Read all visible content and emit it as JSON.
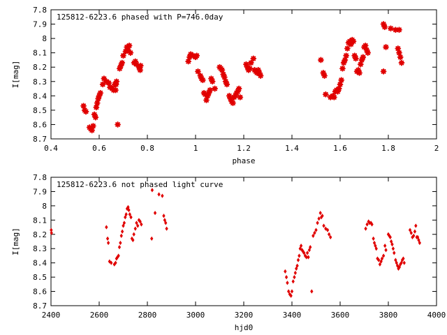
{
  "chart_data": [
    {
      "type": "scatter",
      "title": "125812-6223.6 phased with P=746.0day",
      "xlabel": "phase",
      "ylabel": "I[mag]",
      "xlim": [
        0.4,
        2.0
      ],
      "ylim": [
        8.7,
        7.8
      ],
      "y_inverted": true,
      "grid": false,
      "color": "#e00000",
      "marker": "star",
      "x_ticks": [
        0.4,
        0.6,
        0.8,
        1.0,
        1.2,
        1.4,
        1.6,
        1.8,
        2.0
      ],
      "x_tick_labels": [
        "0.4",
        "0.6",
        "0.8",
        "1",
        "1.2",
        "1.4",
        "1.6",
        "1.8",
        "2"
      ],
      "y_ticks": [
        7.8,
        7.9,
        8.0,
        8.1,
        8.2,
        8.3,
        8.4,
        8.5,
        8.6,
        8.7
      ],
      "y_tick_labels": [
        "7.8",
        "7.9",
        "8",
        "8.1",
        "8.2",
        "8.3",
        "8.4",
        "8.5",
        "8.6",
        "8.7"
      ],
      "points": [
        [
          0.535,
          8.47
        ],
        [
          0.54,
          8.5
        ],
        [
          0.545,
          8.51
        ],
        [
          0.56,
          8.62
        ],
        [
          0.565,
          8.63
        ],
        [
          0.57,
          8.64
        ],
        [
          0.575,
          8.61
        ],
        [
          0.58,
          8.53
        ],
        [
          0.585,
          8.55
        ],
        [
          0.588,
          8.48
        ],
        [
          0.592,
          8.45
        ],
        [
          0.596,
          8.42
        ],
        [
          0.6,
          8.4
        ],
        [
          0.605,
          8.38
        ],
        [
          0.615,
          8.32
        ],
        [
          0.62,
          8.28
        ],
        [
          0.63,
          8.3
        ],
        [
          0.64,
          8.31
        ],
        [
          0.645,
          8.34
        ],
        [
          0.655,
          8.35
        ],
        [
          0.66,
          8.36
        ],
        [
          0.665,
          8.32
        ],
        [
          0.668,
          8.36
        ],
        [
          0.67,
          8.32
        ],
        [
          0.672,
          8.3
        ],
        [
          0.677,
          8.6
        ],
        [
          0.685,
          8.21
        ],
        [
          0.69,
          8.19
        ],
        [
          0.695,
          8.17
        ],
        [
          0.7,
          8.12
        ],
        [
          0.71,
          8.09
        ],
        [
          0.715,
          8.06
        ],
        [
          0.72,
          8.08
        ],
        [
          0.725,
          8.05
        ],
        [
          0.73,
          8.1
        ],
        [
          0.745,
          8.17
        ],
        [
          0.75,
          8.16
        ],
        [
          0.755,
          8.18
        ],
        [
          0.765,
          8.2
        ],
        [
          0.77,
          8.22
        ],
        [
          0.772,
          8.19
        ],
        [
          0.97,
          8.16
        ],
        [
          0.975,
          8.13
        ],
        [
          0.98,
          8.11
        ],
        [
          0.99,
          8.12
        ],
        [
          1.0,
          8.13
        ],
        [
          1.005,
          8.12
        ],
        [
          1.01,
          8.23
        ],
        [
          1.02,
          8.26
        ],
        [
          1.025,
          8.28
        ],
        [
          1.03,
          8.29
        ],
        [
          1.035,
          8.38
        ],
        [
          1.04,
          8.39
        ],
        [
          1.045,
          8.43
        ],
        [
          1.05,
          8.4
        ],
        [
          1.055,
          8.38
        ],
        [
          1.06,
          8.36
        ],
        [
          1.065,
          8.28
        ],
        [
          1.07,
          8.3
        ],
        [
          1.08,
          8.35
        ],
        [
          1.1,
          8.2
        ],
        [
          1.105,
          8.21
        ],
        [
          1.11,
          8.22
        ],
        [
          1.115,
          8.25
        ],
        [
          1.12,
          8.27
        ],
        [
          1.125,
          8.3
        ],
        [
          1.13,
          8.32
        ],
        [
          1.14,
          8.4
        ],
        [
          1.145,
          8.42
        ],
        [
          1.15,
          8.44
        ],
        [
          1.155,
          8.45
        ],
        [
          1.16,
          8.41
        ],
        [
          1.165,
          8.4
        ],
        [
          1.17,
          8.38
        ],
        [
          1.175,
          8.37
        ],
        [
          1.18,
          8.35
        ],
        [
          1.185,
          8.41
        ],
        [
          1.21,
          8.18
        ],
        [
          1.215,
          8.2
        ],
        [
          1.22,
          8.22
        ],
        [
          1.225,
          8.21
        ],
        [
          1.23,
          8.17
        ],
        [
          1.24,
          8.14
        ],
        [
          1.245,
          8.22
        ],
        [
          1.25,
          8.23
        ],
        [
          1.255,
          8.24
        ],
        [
          1.26,
          8.22
        ],
        [
          1.265,
          8.24
        ],
        [
          1.27,
          8.26
        ],
        [
          1.52,
          8.15
        ],
        [
          1.53,
          8.24
        ],
        [
          1.535,
          8.26
        ],
        [
          1.54,
          8.39
        ],
        [
          1.56,
          8.41
        ],
        [
          1.57,
          8.4
        ],
        [
          1.575,
          8.41
        ],
        [
          1.58,
          8.37
        ],
        [
          1.585,
          8.36
        ],
        [
          1.59,
          8.37
        ],
        [
          1.595,
          8.35
        ],
        [
          1.6,
          8.32
        ],
        [
          1.605,
          8.29
        ],
        [
          1.61,
          8.21
        ],
        [
          1.615,
          8.17
        ],
        [
          1.62,
          8.15
        ],
        [
          1.625,
          8.12
        ],
        [
          1.63,
          8.07
        ],
        [
          1.635,
          8.03
        ],
        [
          1.64,
          8.02
        ],
        [
          1.645,
          8.04
        ],
        [
          1.65,
          8.01
        ],
        [
          1.655,
          8.02
        ],
        [
          1.66,
          8.12
        ],
        [
          1.665,
          8.14
        ],
        [
          1.67,
          8.23
        ],
        [
          1.675,
          8.22
        ],
        [
          1.68,
          8.24
        ],
        [
          1.685,
          8.18
        ],
        [
          1.69,
          8.15
        ],
        [
          1.695,
          8.13
        ],
        [
          1.7,
          8.06
        ],
        [
          1.705,
          8.05
        ],
        [
          1.71,
          8.08
        ],
        [
          1.715,
          8.1
        ],
        [
          1.78,
          7.9
        ],
        [
          1.785,
          7.92
        ],
        [
          1.79,
          8.06
        ],
        [
          1.78,
          8.23
        ],
        [
          1.81,
          7.93
        ],
        [
          1.83,
          7.94
        ],
        [
          1.845,
          7.94
        ],
        [
          1.84,
          8.07
        ],
        [
          1.845,
          8.1
        ],
        [
          1.85,
          8.13
        ],
        [
          1.855,
          8.17
        ]
      ]
    },
    {
      "type": "scatter",
      "title": "125812-6223.6 not phased light curve",
      "xlabel": "hjd0",
      "ylabel": "I[mag]",
      "xlim": [
        2400,
        4000
      ],
      "ylim": [
        8.7,
        7.8
      ],
      "y_inverted": true,
      "grid": false,
      "color": "#e00000",
      "marker": "diamond",
      "x_ticks": [
        2400,
        2600,
        2800,
        3000,
        3200,
        3400,
        3600,
        3800,
        4000
      ],
      "x_tick_labels": [
        "2400",
        "2600",
        "2800",
        "3000",
        "3200",
        "3400",
        "3600",
        "3800",
        "4000"
      ],
      "y_ticks": [
        7.8,
        7.9,
        8.0,
        8.1,
        8.2,
        8.3,
        8.4,
        8.5,
        8.6,
        8.7
      ],
      "y_tick_labels": [
        "7.8",
        "7.9",
        "8",
        "8.1",
        "8.2",
        "8.3",
        "8.4",
        "8.5",
        "8.6",
        "8.7"
      ],
      "points": [
        [
          2401,
          8.17
        ],
        [
          2402,
          8.19
        ],
        [
          2630,
          8.15
        ],
        [
          2635,
          8.23
        ],
        [
          2638,
          8.26
        ],
        [
          2643,
          8.39
        ],
        [
          2650,
          8.4
        ],
        [
          2663,
          8.41
        ],
        [
          2668,
          8.4
        ],
        [
          2672,
          8.37
        ],
        [
          2676,
          8.36
        ],
        [
          2680,
          8.35
        ],
        [
          2684,
          8.29
        ],
        [
          2688,
          8.26
        ],
        [
          2692,
          8.21
        ],
        [
          2696,
          8.18
        ],
        [
          2700,
          8.14
        ],
        [
          2704,
          8.12
        ],
        [
          2708,
          8.08
        ],
        [
          2712,
          8.06
        ],
        [
          2716,
          8.02
        ],
        [
          2720,
          8.01
        ],
        [
          2723,
          8.03
        ],
        [
          2727,
          8.06
        ],
        [
          2732,
          8.08
        ],
        [
          2736,
          8.23
        ],
        [
          2740,
          8.24
        ],
        [
          2744,
          8.2
        ],
        [
          2750,
          8.16
        ],
        [
          2755,
          8.12
        ],
        [
          2760,
          8.14
        ],
        [
          2765,
          8.1
        ],
        [
          2770,
          8.11
        ],
        [
          2775,
          8.13
        ],
        [
          2818,
          8.23
        ],
        [
          2820,
          7.89
        ],
        [
          2832,
          8.05
        ],
        [
          2848,
          7.92
        ],
        [
          2862,
          7.93
        ],
        [
          2868,
          8.07
        ],
        [
          2872,
          8.1
        ],
        [
          2876,
          8.12
        ],
        [
          2880,
          8.16
        ],
        [
          3372,
          8.46
        ],
        [
          3377,
          8.5
        ],
        [
          3381,
          8.54
        ],
        [
          3386,
          8.6
        ],
        [
          3391,
          8.62
        ],
        [
          3396,
          8.63
        ],
        [
          3400,
          8.6
        ],
        [
          3405,
          8.53
        ],
        [
          3410,
          8.5
        ],
        [
          3414,
          8.47
        ],
        [
          3418,
          8.44
        ],
        [
          3422,
          8.42
        ],
        [
          3426,
          8.38
        ],
        [
          3430,
          8.35
        ],
        [
          3434,
          8.3
        ],
        [
          3438,
          8.28
        ],
        [
          3442,
          8.31
        ],
        [
          3446,
          8.32
        ],
        [
          3450,
          8.33
        ],
        [
          3455,
          8.35
        ],
        [
          3460,
          8.36
        ],
        [
          3464,
          8.33
        ],
        [
          3468,
          8.36
        ],
        [
          3472,
          8.31
        ],
        [
          3476,
          8.29
        ],
        [
          3482,
          8.6
        ],
        [
          3488,
          8.21
        ],
        [
          3494,
          8.19
        ],
        [
          3500,
          8.17
        ],
        [
          3506,
          8.12
        ],
        [
          3512,
          8.09
        ],
        [
          3518,
          8.05
        ],
        [
          3522,
          8.08
        ],
        [
          3526,
          8.07
        ],
        [
          3532,
          8.14
        ],
        [
          3540,
          8.16
        ],
        [
          3548,
          8.17
        ],
        [
          3554,
          8.2
        ],
        [
          3560,
          8.22
        ],
        [
          3706,
          8.16
        ],
        [
          3712,
          8.13
        ],
        [
          3718,
          8.11
        ],
        [
          3722,
          8.12
        ],
        [
          3728,
          8.12
        ],
        [
          3732,
          8.13
        ],
        [
          3738,
          8.23
        ],
        [
          3742,
          8.26
        ],
        [
          3746,
          8.28
        ],
        [
          3750,
          8.3
        ],
        [
          3755,
          8.37
        ],
        [
          3760,
          8.38
        ],
        [
          3765,
          8.41
        ],
        [
          3770,
          8.39
        ],
        [
          3774,
          8.37
        ],
        [
          3780,
          8.35
        ],
        [
          3786,
          8.28
        ],
        [
          3790,
          8.31
        ],
        [
          3800,
          8.2
        ],
        [
          3804,
          8.21
        ],
        [
          3808,
          8.22
        ],
        [
          3812,
          8.25
        ],
        [
          3816,
          8.27
        ],
        [
          3820,
          8.3
        ],
        [
          3824,
          8.33
        ],
        [
          3830,
          8.38
        ],
        [
          3834,
          8.4
        ],
        [
          3838,
          8.42
        ],
        [
          3842,
          8.44
        ],
        [
          3846,
          8.43
        ],
        [
          3850,
          8.41
        ],
        [
          3854,
          8.4
        ],
        [
          3858,
          8.38
        ],
        [
          3862,
          8.37
        ],
        [
          3866,
          8.4
        ],
        [
          3890,
          8.17
        ],
        [
          3895,
          8.19
        ],
        [
          3900,
          8.22
        ],
        [
          3905,
          8.21
        ],
        [
          3910,
          8.18
        ],
        [
          3914,
          8.14
        ],
        [
          3918,
          8.22
        ],
        [
          3922,
          8.22
        ],
        [
          3926,
          8.24
        ],
        [
          3930,
          8.26
        ]
      ]
    }
  ]
}
